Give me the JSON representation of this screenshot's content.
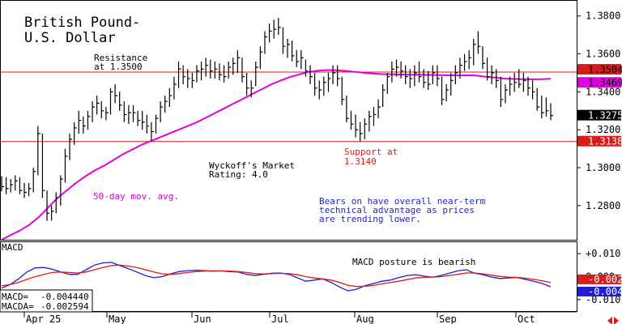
{
  "chart_data": [
    {
      "type": "ohlc",
      "title_lines": [
        "British Pound-",
        "U.S. Dollar"
      ],
      "y_ticks": [
        "1.3800",
        "1.3600",
        "1.3400",
        "1.3200",
        "1.3000",
        "1.2800"
      ],
      "ylim": [
        1.262,
        1.388
      ],
      "grid": false,
      "annotations": {
        "resistance": [
          "Resistance",
          "at 1.3500"
        ],
        "support": [
          "Support at",
          "1.3140"
        ],
        "rating": [
          "Wyckoff's Market",
          "Rating: 4.0"
        ],
        "moving_avg": "50-day mov. avg.",
        "commentary": [
          "Bears on have overall near-term",
          "technical advantage as prices",
          "are trending lower."
        ]
      },
      "price_tags": {
        "resistance": "1.3504",
        "moving_avg": "1.3469",
        "last": "1.3275",
        "support": "1.3138"
      },
      "levels": {
        "resistance": 1.3504,
        "moving_avg": 1.3469,
        "last": 1.3275,
        "support": 1.3138
      },
      "colors": {
        "price": "#000000",
        "moving_avg": "#e000e0",
        "level_line": "#d81b1b",
        "annotation_red": "#d81b1b",
        "annotation_blue": "#1f1fd0",
        "annotation_magenta": "#cc00cc"
      },
      "bars": [
        [
          1.2955,
          1.2875,
          1.29
        ],
        [
          1.295,
          1.286,
          1.289
        ],
        [
          1.294,
          1.287,
          1.291
        ],
        [
          1.296,
          1.288,
          1.293
        ],
        [
          1.295,
          1.286,
          1.288
        ],
        [
          1.292,
          1.284,
          1.287
        ],
        [
          1.292,
          1.285,
          1.289
        ],
        [
          1.3,
          1.287,
          1.298
        ],
        [
          1.322,
          1.296,
          1.318
        ],
        [
          1.318,
          1.284,
          1.288
        ],
        [
          1.288,
          1.272,
          1.276
        ],
        [
          1.28,
          1.272,
          1.277
        ],
        [
          1.287,
          1.276,
          1.284
        ],
        [
          1.296,
          1.28,
          1.294
        ],
        [
          1.31,
          1.292,
          1.306
        ],
        [
          1.318,
          1.304,
          1.315
        ],
        [
          1.324,
          1.312,
          1.321
        ],
        [
          1.33,
          1.318,
          1.325
        ],
        [
          1.327,
          1.318,
          1.322
        ],
        [
          1.33,
          1.32,
          1.327
        ],
        [
          1.335,
          1.324,
          1.332
        ],
        [
          1.338,
          1.328,
          1.334
        ],
        [
          1.335,
          1.326,
          1.33
        ],
        [
          1.332,
          1.325,
          1.329
        ],
        [
          1.342,
          1.328,
          1.34
        ],
        [
          1.344,
          1.334,
          1.338
        ],
        [
          1.34,
          1.33,
          1.333
        ],
        [
          1.335,
          1.324,
          1.328
        ],
        [
          1.333,
          1.323,
          1.329
        ],
        [
          1.333,
          1.324,
          1.329
        ],
        [
          1.33,
          1.322,
          1.325
        ],
        [
          1.33,
          1.32,
          1.324
        ],
        [
          1.328,
          1.318,
          1.322
        ],
        [
          1.324,
          1.314,
          1.319
        ],
        [
          1.328,
          1.318,
          1.326
        ],
        [
          1.335,
          1.324,
          1.332
        ],
        [
          1.338,
          1.329,
          1.335
        ],
        [
          1.342,
          1.332,
          1.338
        ],
        [
          1.348,
          1.336,
          1.344
        ],
        [
          1.356,
          1.342,
          1.352
        ],
        [
          1.354,
          1.344,
          1.348
        ],
        [
          1.352,
          1.342,
          1.347
        ],
        [
          1.35,
          1.342,
          1.346
        ],
        [
          1.354,
          1.345,
          1.351
        ],
        [
          1.356,
          1.346,
          1.352
        ],
        [
          1.358,
          1.348,
          1.354
        ],
        [
          1.357,
          1.347,
          1.351
        ],
        [
          1.356,
          1.347,
          1.352
        ],
        [
          1.355,
          1.346,
          1.349
        ],
        [
          1.354,
          1.345,
          1.348
        ],
        [
          1.356,
          1.347,
          1.353
        ],
        [
          1.358,
          1.349,
          1.355
        ],
        [
          1.362,
          1.35,
          1.358
        ],
        [
          1.358,
          1.345,
          1.348
        ],
        [
          1.35,
          1.338,
          1.342
        ],
        [
          1.346,
          1.337,
          1.342
        ],
        [
          1.356,
          1.343,
          1.353
        ],
        [
          1.364,
          1.352,
          1.361
        ],
        [
          1.372,
          1.36,
          1.369
        ],
        [
          1.376,
          1.366,
          1.372
        ],
        [
          1.378,
          1.368,
          1.373
        ],
        [
          1.379,
          1.37,
          1.374
        ],
        [
          1.374,
          1.36,
          1.364
        ],
        [
          1.368,
          1.358,
          1.365
        ],
        [
          1.367,
          1.356,
          1.359
        ],
        [
          1.362,
          1.353,
          1.356
        ],
        [
          1.362,
          1.352,
          1.358
        ],
        [
          1.357,
          1.348,
          1.351
        ],
        [
          1.354,
          1.344,
          1.348
        ],
        [
          1.35,
          1.338,
          1.342
        ],
        [
          1.346,
          1.336,
          1.341
        ],
        [
          1.348,
          1.338,
          1.345
        ],
        [
          1.35,
          1.34,
          1.347
        ],
        [
          1.354,
          1.344,
          1.35
        ],
        [
          1.354,
          1.343,
          1.347
        ],
        [
          1.348,
          1.333,
          1.336
        ],
        [
          1.338,
          1.324,
          1.326
        ],
        [
          1.33,
          1.32,
          1.323
        ],
        [
          1.328,
          1.316,
          1.32
        ],
        [
          1.324,
          1.314,
          1.318
        ],
        [
          1.326,
          1.315,
          1.323
        ],
        [
          1.33,
          1.319,
          1.327
        ],
        [
          1.332,
          1.322,
          1.328
        ],
        [
          1.336,
          1.326,
          1.332
        ],
        [
          1.344,
          1.332,
          1.341
        ],
        [
          1.35,
          1.339,
          1.348
        ],
        [
          1.356,
          1.345,
          1.352
        ],
        [
          1.357,
          1.348,
          1.353
        ],
        [
          1.356,
          1.347,
          1.351
        ],
        [
          1.354,
          1.344,
          1.348
        ],
        [
          1.352,
          1.342,
          1.347
        ],
        [
          1.354,
          1.343,
          1.35
        ],
        [
          1.356,
          1.345,
          1.348
        ],
        [
          1.352,
          1.342,
          1.345
        ],
        [
          1.351,
          1.341,
          1.344
        ],
        [
          1.354,
          1.344,
          1.35
        ],
        [
          1.354,
          1.343,
          1.347
        ],
        [
          1.348,
          1.333,
          1.336
        ],
        [
          1.344,
          1.335,
          1.341
        ],
        [
          1.35,
          1.338,
          1.346
        ],
        [
          1.354,
          1.344,
          1.35
        ],
        [
          1.358,
          1.347,
          1.354
        ],
        [
          1.36,
          1.351,
          1.356
        ],
        [
          1.362,
          1.352,
          1.358
        ],
        [
          1.368,
          1.354,
          1.365
        ],
        [
          1.372,
          1.36,
          1.364
        ],
        [
          1.364,
          1.352,
          1.355
        ],
        [
          1.358,
          1.346,
          1.348
        ],
        [
          1.354,
          1.344,
          1.35
        ],
        [
          1.352,
          1.342,
          1.346
        ],
        [
          1.348,
          1.332,
          1.336
        ],
        [
          1.344,
          1.334,
          1.341
        ],
        [
          1.348,
          1.338,
          1.344
        ],
        [
          1.35,
          1.34,
          1.345
        ],
        [
          1.352,
          1.342,
          1.344
        ],
        [
          1.35,
          1.34,
          1.346
        ],
        [
          1.348,
          1.338,
          1.342
        ],
        [
          1.346,
          1.336,
          1.34
        ],
        [
          1.342,
          1.33,
          1.332
        ],
        [
          1.338,
          1.326,
          1.329
        ],
        [
          1.337,
          1.327,
          1.33
        ],
        [
          1.334,
          1.325,
          1.3275
        ]
      ],
      "moving_avg": [
        1.262,
        1.2645,
        1.267,
        1.27,
        1.274,
        1.279,
        1.284,
        1.288,
        1.292,
        1.2955,
        1.2985,
        1.301,
        1.304,
        1.307,
        1.3095,
        1.312,
        1.314,
        1.316,
        1.318,
        1.32,
        1.322,
        1.324,
        1.3265,
        1.329,
        1.3315,
        1.334,
        1.3365,
        1.339,
        1.3415,
        1.344,
        1.346,
        1.3478,
        1.3492,
        1.3505,
        1.3512,
        1.3515,
        1.3514,
        1.351,
        1.3505,
        1.35,
        1.3496,
        1.3493,
        1.3492,
        1.3491,
        1.349,
        1.349,
        1.3489,
        1.3488,
        1.3487,
        1.3487,
        1.3487,
        1.3486,
        1.348,
        1.3475,
        1.347,
        1.3468,
        1.3467,
        1.3466,
        1.3467,
        1.3469
      ]
    },
    {
      "type": "line",
      "title": "MACD",
      "y_ticks": [
        "+0.010",
        "0.000",
        "-0.010"
      ],
      "ylim": [
        -0.015,
        0.015
      ],
      "readouts": {
        "macd_label": "MACD=",
        "macd_value": "-0.004440",
        "macda_label": "MACDA=",
        "macda_value": "-0.002594"
      },
      "annotation": "MACD posture is bearish",
      "value_tags": {
        "macda": "-0.002",
        "macd": "-0.004"
      },
      "series": [
        {
          "key": "macd",
          "color": "#1f1fd0",
          "values": [
            -0.005,
            -0.0035,
            -0.001,
            0.002,
            0.0038,
            0.004,
            0.0032,
            0.002,
            0.001,
            0.001,
            0.003,
            0.005,
            0.006,
            0.0062,
            0.0048,
            0.0035,
            0.002,
            0.0005,
            -0.0005,
            0.0,
            0.0012,
            0.0022,
            0.0026,
            0.0028,
            0.0026,
            0.0024,
            0.0025,
            0.0022,
            0.002,
            0.001,
            0.0005,
            0.001,
            0.0015,
            0.0016,
            0.001,
            -0.0005,
            -0.002,
            -0.0015,
            -0.001,
            -0.0025,
            -0.0045,
            -0.0062,
            -0.0055,
            -0.004,
            -0.003,
            -0.002,
            -0.0015,
            -0.0005,
            0.0005,
            0.0008,
            0.0002,
            -0.0002,
            0.0005,
            0.0015,
            0.0025,
            0.003,
            0.0015,
            0.0008,
            -0.0002,
            -0.0008,
            -0.0006,
            -0.0004,
            -0.0012,
            -0.002,
            -0.003,
            -0.0044
          ]
        },
        {
          "key": "macda",
          "color": "#d81b1b",
          "values": [
            -0.004,
            -0.0035,
            -0.0025,
            -0.0012,
            0.0,
            0.001,
            0.0018,
            0.002,
            0.0018,
            0.0016,
            0.002,
            0.003,
            0.004,
            0.0048,
            0.005,
            0.0046,
            0.004,
            0.003,
            0.002,
            0.0012,
            0.001,
            0.0013,
            0.0018,
            0.0022,
            0.0024,
            0.0025,
            0.0025,
            0.0024,
            0.0022,
            0.0018,
            0.0013,
            0.0012,
            0.0013,
            0.0014,
            0.0013,
            0.0008,
            0.0,
            -0.0006,
            -0.001,
            -0.0015,
            -0.0025,
            -0.0038,
            -0.0043,
            -0.0042,
            -0.0038,
            -0.0032,
            -0.0026,
            -0.002,
            -0.0013,
            -0.0006,
            -0.0003,
            -0.0002,
            0.0,
            0.0005,
            0.001,
            0.0016,
            0.0016,
            0.0012,
            0.0006,
            0.0001,
            -0.0002,
            -0.0003,
            -0.0007,
            -0.0012,
            -0.0018,
            -0.0026
          ]
        }
      ]
    }
  ],
  "x_axis": {
    "labels": [
      "Apr 25",
      "May",
      "Jun",
      "Jul",
      "Aug",
      "Sep",
      "Oct"
    ]
  }
}
